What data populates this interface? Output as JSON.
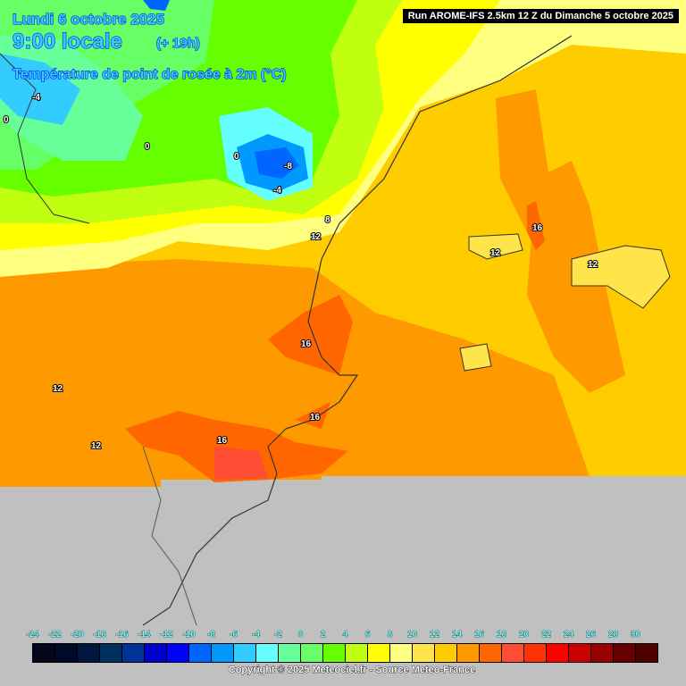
{
  "header": {
    "date": "Lundi 6 octobre 2025",
    "time": "9:00 locale",
    "lead": "(+ 19h)",
    "parameter": "Température de point de rosée à 2m (°C)",
    "run": "Run AROME-IFS 2.5km 12 Z du Dimanche 5 octobre 2025"
  },
  "map": {
    "isolines": [
      "-8",
      "-4",
      "0",
      "0",
      "0",
      "-4",
      "8",
      "12",
      "16",
      "16",
      "16",
      "16",
      "12",
      "12",
      "12",
      "12"
    ]
  },
  "legend": {
    "labels": [
      "-24",
      "-22",
      "-20",
      "-18",
      "-16",
      "-14",
      "-12",
      "-10",
      "-8",
      "-6",
      "-4",
      "-2",
      "0",
      "2",
      "4",
      "6",
      "8",
      "10",
      "12",
      "14",
      "16",
      "18",
      "20",
      "22",
      "24",
      "26",
      "28",
      "30"
    ],
    "colors": [
      "#04061c",
      "#000a28",
      "#001540",
      "#00305f",
      "#003399",
      "#0000cc",
      "#0000ff",
      "#0066ff",
      "#0099ff",
      "#33ccff",
      "#66ffff",
      "#66ff99",
      "#66ff66",
      "#66ff00",
      "#c0ff10",
      "#ffff00",
      "#ffff80",
      "#ffe44a",
      "#ffcc00",
      "#ff9900",
      "#ff6600",
      "#ff4d33",
      "#ff3300",
      "#ff0000",
      "#cc0000",
      "#990000",
      "#660000",
      "#4d0000"
    ]
  },
  "footer": {
    "copyright": "Copyright © 2025 Meteociel.fr - Source Meteo-France"
  }
}
